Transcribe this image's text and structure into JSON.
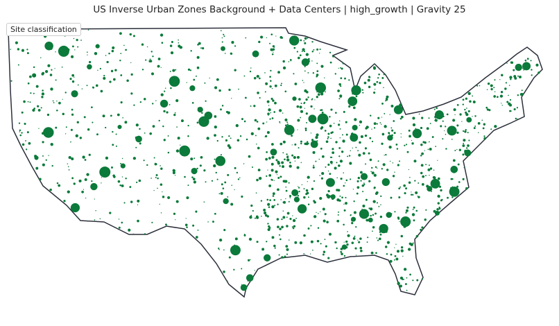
{
  "title": "US Inverse Urban Zones Background + Data Centers | high_growth | Gravity 25",
  "legend": {
    "title": "Site classification"
  }
}
